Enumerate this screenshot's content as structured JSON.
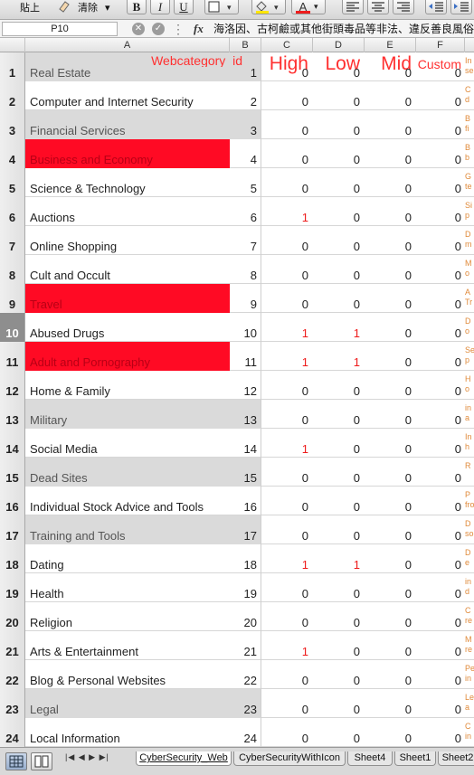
{
  "toolbar": {
    "paste_label": "貼上",
    "clear_label": "清除",
    "bold_label": "B",
    "italic_label": "I",
    "underline_label": "U",
    "font_color_label": "A"
  },
  "formula_bar": {
    "name_box": "P10",
    "fx_label": "fx",
    "content": "海洛因、古柯鹼或其他街頭毒品等非法、違反善良風俗"
  },
  "columns": [
    "A",
    "B",
    "C",
    "D",
    "E",
    "F"
  ],
  "header_row": {
    "row_number": "1",
    "a": "Real Estate",
    "b": "Webcategory_id",
    "b_value": "1",
    "c": "High",
    "d": "Low",
    "e": "Mid",
    "f": "Custom",
    "g": "In se"
  },
  "rows": [
    {
      "n": "2",
      "name": "Computer and Internet Security",
      "id": "2",
      "high": "0",
      "low": "0",
      "mid": "0",
      "custom": "0",
      "note": "C d",
      "style": "white",
      "high_red": false,
      "low_red": false
    },
    {
      "n": "3",
      "name": "Financial Services",
      "id": "3",
      "high": "0",
      "low": "0",
      "mid": "0",
      "custom": "0",
      "note": "B fi",
      "style": "gray",
      "high_red": false,
      "low_red": false
    },
    {
      "n": "4",
      "name": "Business and Economy",
      "id": "4",
      "high": "0",
      "low": "0",
      "mid": "0",
      "custom": "0",
      "note": "B b",
      "style": "hl",
      "high_red": false,
      "low_red": false
    },
    {
      "n": "5",
      "name": "Science & Technology",
      "id": "5",
      "high": "0",
      "low": "0",
      "mid": "0",
      "custom": "0",
      "note": "G te",
      "style": "white",
      "high_red": false,
      "low_red": false
    },
    {
      "n": "6",
      "name": "Auctions",
      "id": "6",
      "high": "1",
      "low": "0",
      "mid": "0",
      "custom": "0",
      "note": "Si p",
      "style": "white",
      "high_red": true,
      "low_red": false
    },
    {
      "n": "7",
      "name": "Online Shopping",
      "id": "7",
      "high": "0",
      "low": "0",
      "mid": "0",
      "custom": "0",
      "note": "D m",
      "style": "white",
      "high_red": false,
      "low_red": false
    },
    {
      "n": "8",
      "name": "Cult and Occult",
      "id": "8",
      "high": "0",
      "low": "0",
      "mid": "0",
      "custom": "0",
      "note": "M o",
      "style": "white",
      "high_red": false,
      "low_red": false
    },
    {
      "n": "9",
      "name": "Travel",
      "id": "9",
      "high": "0",
      "low": "0",
      "mid": "0",
      "custom": "0",
      "note": "A Tr",
      "style": "hl",
      "high_red": false,
      "low_red": false
    },
    {
      "n": "10",
      "name": "Abused Drugs",
      "id": "10",
      "high": "1",
      "low": "1",
      "mid": "0",
      "custom": "0",
      "note": "D o",
      "style": "white",
      "high_red": true,
      "low_red": true
    },
    {
      "n": "11",
      "name": "Adult and Pornography",
      "id": "11",
      "high": "1",
      "low": "1",
      "mid": "0",
      "custom": "0",
      "note": "Se p",
      "style": "hl",
      "high_red": true,
      "low_red": true
    },
    {
      "n": "12",
      "name": "Home & Family",
      "id": "12",
      "high": "0",
      "low": "0",
      "mid": "0",
      "custom": "0",
      "note": "H o",
      "style": "white",
      "high_red": false,
      "low_red": false
    },
    {
      "n": "13",
      "name": "Military",
      "id": "13",
      "high": "0",
      "low": "0",
      "mid": "0",
      "custom": "0",
      "note": "in a",
      "style": "gray",
      "high_red": false,
      "low_red": false
    },
    {
      "n": "14",
      "name": "Social Media",
      "id": "14",
      "high": "1",
      "low": "0",
      "mid": "0",
      "custom": "0",
      "note": "In h",
      "style": "white",
      "high_red": true,
      "low_red": false
    },
    {
      "n": "15",
      "name": "Dead Sites",
      "id": "15",
      "high": "0",
      "low": "0",
      "mid": "0",
      "custom": "0",
      "note": "R",
      "style": "gray",
      "high_red": false,
      "low_red": false
    },
    {
      "n": "16",
      "name": "Individual Stock Advice and Tools",
      "id": "16",
      "high": "0",
      "low": "0",
      "mid": "0",
      "custom": "0",
      "note": "P fro",
      "style": "white",
      "high_red": false,
      "low_red": false
    },
    {
      "n": "17",
      "name": "Training and Tools",
      "id": "17",
      "high": "0",
      "low": "0",
      "mid": "0",
      "custom": "0",
      "note": "D so",
      "style": "gray",
      "high_red": false,
      "low_red": false
    },
    {
      "n": "18",
      "name": "Dating",
      "id": "18",
      "high": "1",
      "low": "1",
      "mid": "0",
      "custom": "0",
      "note": "D e",
      "style": "white",
      "high_red": true,
      "low_red": true
    },
    {
      "n": "19",
      "name": "Health",
      "id": "19",
      "high": "0",
      "low": "0",
      "mid": "0",
      "custom": "0",
      "note": "in d",
      "style": "white",
      "high_red": false,
      "low_red": false
    },
    {
      "n": "20",
      "name": "Religion",
      "id": "20",
      "high": "0",
      "low": "0",
      "mid": "0",
      "custom": "0",
      "note": "C re",
      "style": "white",
      "high_red": false,
      "low_red": false
    },
    {
      "n": "21",
      "name": "Arts & Entertainment",
      "id": "21",
      "high": "1",
      "low": "0",
      "mid": "0",
      "custom": "0",
      "note": "M re",
      "style": "white",
      "high_red": true,
      "low_red": false
    },
    {
      "n": "22",
      "name": "Blog & Personal Websites",
      "id": "22",
      "high": "0",
      "low": "0",
      "mid": "0",
      "custom": "0",
      "note": "Pe in",
      "style": "white",
      "high_red": false,
      "low_red": false
    },
    {
      "n": "23",
      "name": "Legal",
      "id": "23",
      "high": "0",
      "low": "0",
      "mid": "0",
      "custom": "0",
      "note": "Le a",
      "style": "gray",
      "high_red": false,
      "low_red": false
    },
    {
      "n": "24",
      "name": "Local Information",
      "id": "24",
      "high": "0",
      "low": "0",
      "mid": "0",
      "custom": "0",
      "note": "C in",
      "style": "white",
      "high_red": false,
      "low_red": false
    }
  ],
  "selected_row": "10",
  "sheet_tabs": [
    "CyberSecurity_Web",
    "CyberSecurityWithIcon",
    "Sheet4",
    "Sheet1",
    "Sheet2"
  ],
  "active_tab": "CyberSecurity_Web",
  "colors": {
    "highlight_fill": "#ff0a24",
    "value_red": "#ee1c1c",
    "gray_fill": "#dadada",
    "note_orange": "#e08a3a"
  }
}
